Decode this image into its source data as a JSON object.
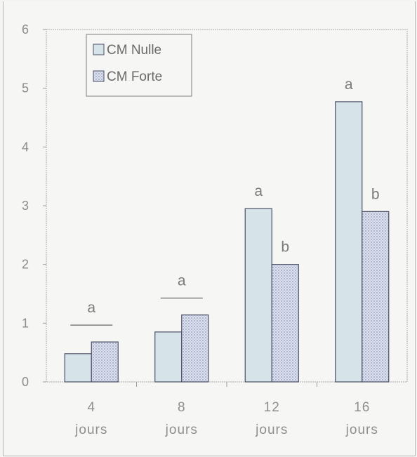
{
  "chart_data": {
    "type": "bar",
    "categories": [
      [
        "4",
        "jours"
      ],
      [
        "8",
        "jours"
      ],
      [
        "12",
        "jours"
      ],
      [
        "16",
        "jours"
      ]
    ],
    "series": [
      {
        "name": "CM Nulle",
        "values": [
          0.48,
          0.85,
          2.95,
          4.77
        ],
        "color": "#d6e4ea"
      },
      {
        "name": "CM Forte",
        "values": [
          0.68,
          1.14,
          2.0,
          2.9
        ],
        "color": "#c9cfe0"
      }
    ],
    "ylim": [
      0,
      6
    ],
    "yticks": [
      0,
      1,
      2,
      3,
      4,
      5,
      6
    ],
    "legend_position": "top-left",
    "significance": [
      {
        "category": 0,
        "letters": [
          "a"
        ],
        "bracket": true
      },
      {
        "category": 1,
        "letters": [
          "a"
        ],
        "bracket": true
      },
      {
        "category": 2,
        "letters": [
          "a",
          "b"
        ],
        "bracket": false
      },
      {
        "category": 3,
        "letters": [
          "a",
          "b"
        ],
        "bracket": false
      }
    ]
  }
}
